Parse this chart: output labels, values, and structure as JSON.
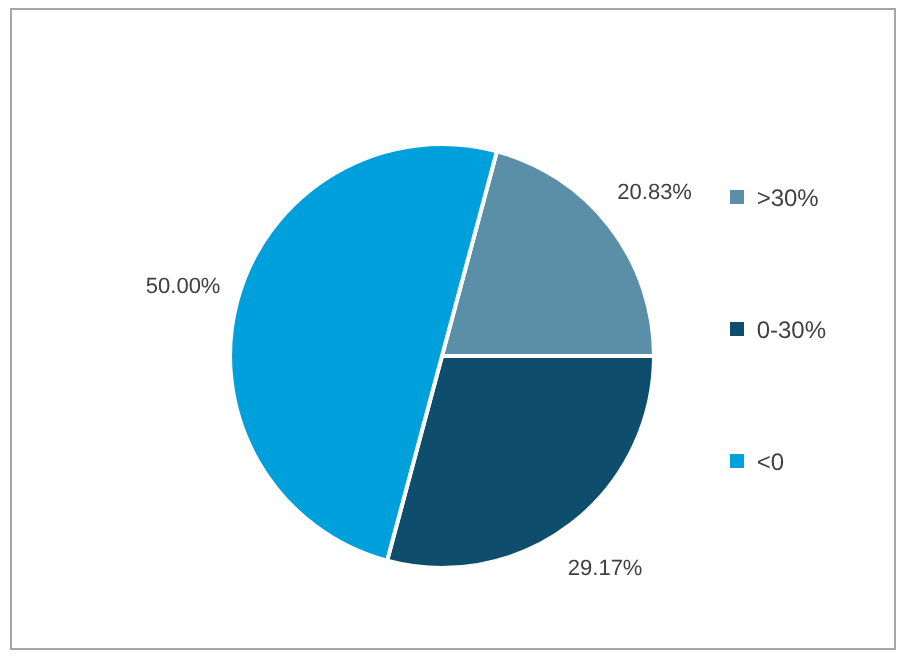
{
  "chart_data": {
    "type": "pie",
    "categories": [
      ">30%",
      "0-30%",
      "<0"
    ],
    "values": [
      20.83,
      29.17,
      50.0
    ],
    "colors": [
      "#5b8fa8",
      "#0e4d6b",
      "#00a0dc"
    ],
    "value_labels": [
      "20.83%",
      "29.17%",
      "50.00%"
    ],
    "legend": "right"
  }
}
